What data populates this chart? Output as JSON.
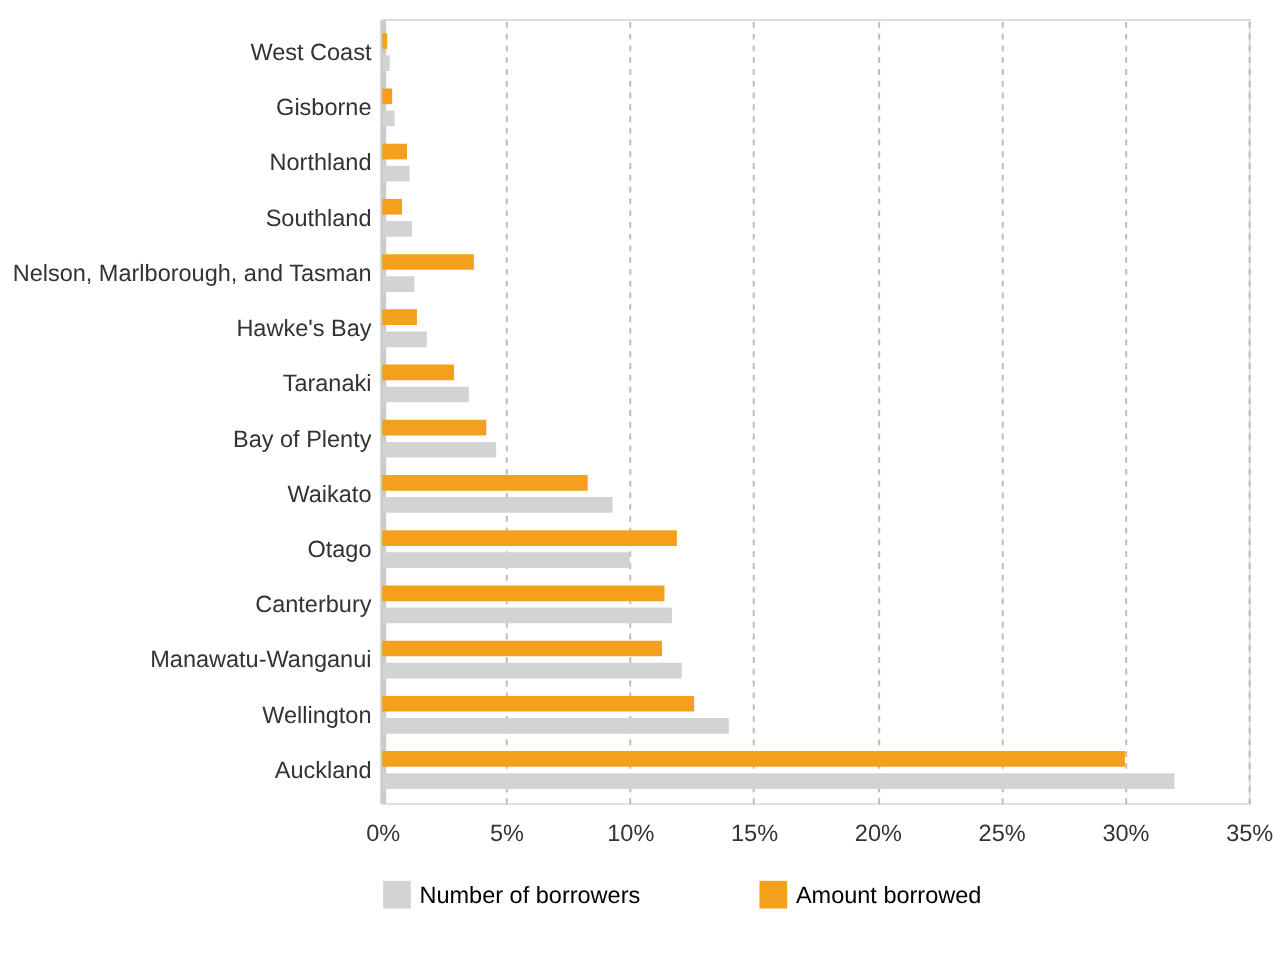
{
  "chart_data": {
    "type": "bar",
    "orientation": "horizontal",
    "categories": [
      "West Coast",
      "Gisborne",
      "Northland",
      "Southland",
      "Nelson, Marlborough, and Tasman",
      "Hawke's Bay",
      "Taranaki",
      "Bay of Plenty",
      "Waikato",
      "Otago",
      "Canterbury",
      "Manawatu-Wanganui",
      "Wellington",
      "Auckland"
    ],
    "series": [
      {
        "name": "Number of borrowers",
        "color": "#d3d3d3",
        "values": [
          0.3,
          0.5,
          1.1,
          1.2,
          1.3,
          1.8,
          3.5,
          4.6,
          9.3,
          10.0,
          11.7,
          12.1,
          14.0,
          32.0
        ]
      },
      {
        "name": "Amount borrowed",
        "color": "#f4a01c",
        "values": [
          0.2,
          0.4,
          1.0,
          0.8,
          3.7,
          1.4,
          2.9,
          4.2,
          8.3,
          11.9,
          11.4,
          11.3,
          12.6,
          30.0
        ]
      }
    ],
    "xlim": [
      0,
      35
    ],
    "xticks": [
      {
        "value": 0,
        "label": "0%"
      },
      {
        "value": 5,
        "label": "5%"
      },
      {
        "value": 10,
        "label": "10%"
      },
      {
        "value": 15,
        "label": "15%"
      },
      {
        "value": 20,
        "label": "20%"
      },
      {
        "value": 25,
        "label": "25%"
      },
      {
        "value": 30,
        "label": "30%"
      },
      {
        "value": 35,
        "label": "35%"
      }
    ],
    "grid": "x",
    "legend": "bottom"
  }
}
